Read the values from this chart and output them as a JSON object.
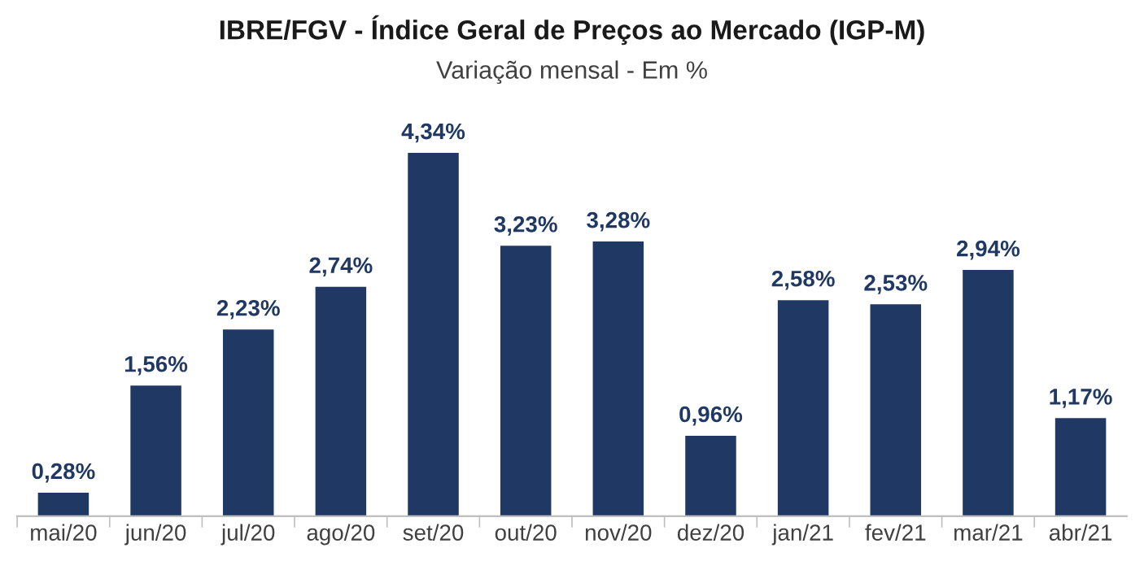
{
  "chart_data": {
    "type": "bar",
    "title": "IBRE/FGV - Índice Geral de Preços ao Mercado (IGP-M)",
    "subtitle": "Variação mensal - Em %",
    "categories": [
      "mai/20",
      "jun/20",
      "jul/20",
      "ago/20",
      "set/20",
      "out/20",
      "nov/20",
      "dez/20",
      "jan/21",
      "fev/21",
      "mar/21",
      "abr/21"
    ],
    "values": [
      0.28,
      1.56,
      2.23,
      2.74,
      4.34,
      3.23,
      3.28,
      0.96,
      2.58,
      2.53,
      2.94,
      1.17
    ],
    "value_labels": [
      "0,28%",
      "1,56%",
      "2,23%",
      "2,74%",
      "4,34%",
      "3,23%",
      "3,28%",
      "0,96%",
      "2,58%",
      "2,53%",
      "2,94%",
      "1,17%"
    ],
    "color": "#1f3864",
    "tick_labels": "x",
    "grid": false,
    "legend": false
  }
}
